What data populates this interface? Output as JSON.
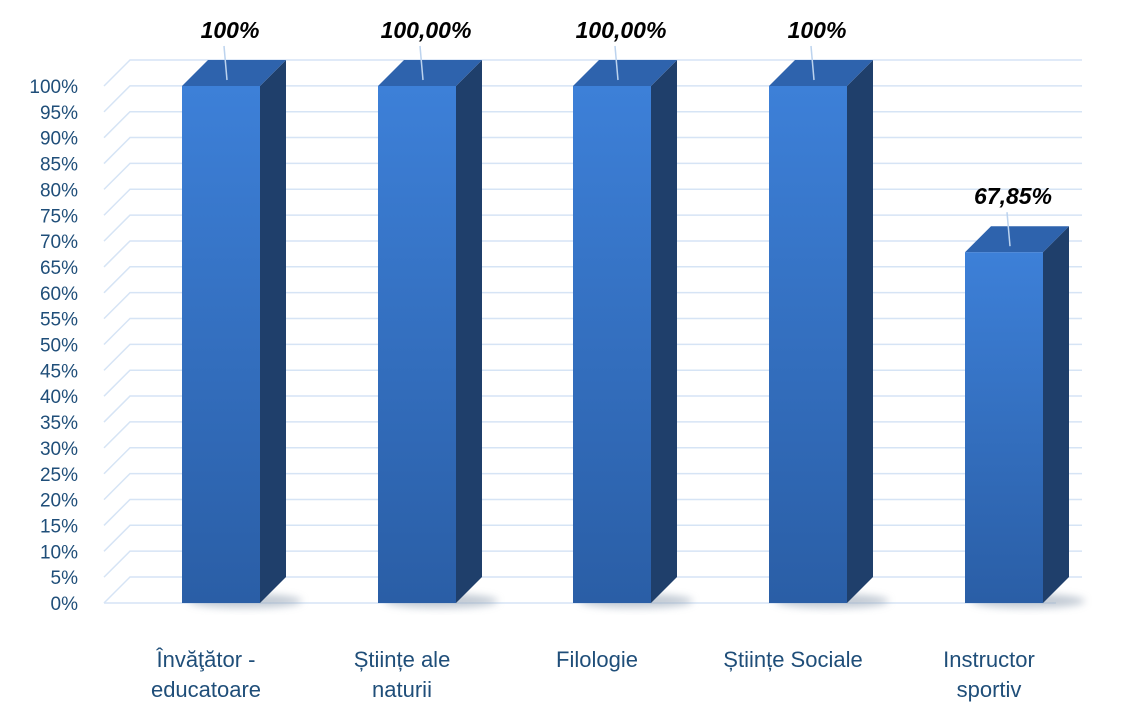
{
  "chart_data": {
    "type": "bar",
    "categories": [
      [
        "Învăţător -",
        "educatoare"
      ],
      [
        "Științe ale",
        "naturii"
      ],
      [
        "Filologie"
      ],
      [
        "Științe Sociale"
      ],
      [
        "Instructor",
        "sportiv"
      ]
    ],
    "values": [
      100,
      100,
      100,
      100,
      67.85
    ],
    "data_labels": [
      "100%",
      "100,00%",
      "100,00%",
      "100%",
      "67,85%"
    ],
    "yticks": [
      "0%",
      "5%",
      "10%",
      "15%",
      "20%",
      "25%",
      "30%",
      "35%",
      "40%",
      "45%",
      "50%",
      "55%",
      "60%",
      "65%",
      "70%",
      "75%",
      "80%",
      "85%",
      "90%",
      "95%",
      "100%"
    ],
    "ylim": [
      0,
      100
    ],
    "grid": true,
    "three_d": true,
    "colors": {
      "bar_front": "#3a7bd5",
      "bar_front_dark": "#2b5fa8",
      "bar_side": "#1f3f6b",
      "bar_top": "#2e63ad",
      "axis_text": "#1f4e79",
      "grid": "#d6e4f5",
      "shadow": "#9aa7b8"
    }
  }
}
